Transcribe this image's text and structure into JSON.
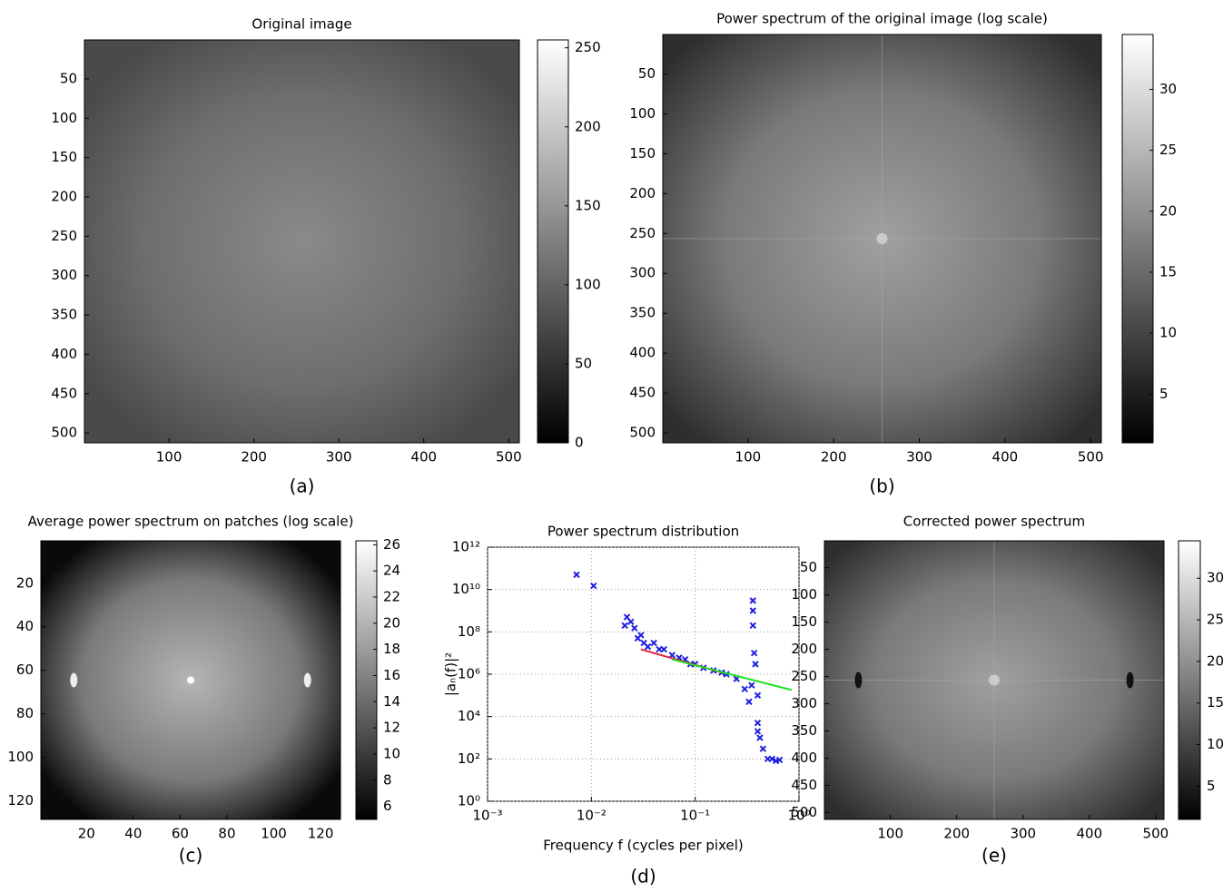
{
  "chart_data": [
    {
      "type": "image",
      "title": "Original image",
      "caption": "(a)",
      "xlim": [
        0.5,
        512.5
      ],
      "ylim": [
        512.5,
        0.5
      ],
      "xticks": [
        100,
        200,
        300,
        400,
        500
      ],
      "yticks": [
        50,
        100,
        150,
        200,
        250,
        300,
        350,
        400,
        450,
        500
      ],
      "clim": [
        0,
        255
      ],
      "cticks": [
        0,
        50,
        100,
        150,
        200,
        250
      ]
    },
    {
      "type": "image",
      "title": "Power spectrum of the original image (log scale)",
      "caption": "(b)",
      "xlim": [
        0.5,
        512.5
      ],
      "ylim": [
        512.5,
        0.5
      ],
      "xticks": [
        100,
        200,
        300,
        400,
        500
      ],
      "yticks": [
        50,
        100,
        150,
        200,
        250,
        300,
        350,
        400,
        450,
        500
      ],
      "clim": [
        1,
        34.5
      ],
      "cticks": [
        5,
        10,
        15,
        20,
        25,
        30
      ]
    },
    {
      "type": "image",
      "title": "Average power spectrum on patches (log scale)",
      "caption": "(c)",
      "xlim": [
        0.5,
        128.5
      ],
      "ylim": [
        128.5,
        0.5
      ],
      "xticks": [
        20,
        40,
        60,
        80,
        100,
        120
      ],
      "yticks": [
        20,
        40,
        60,
        80,
        100,
        120
      ],
      "clim": [
        5,
        26.3
      ],
      "cticks": [
        6,
        8,
        10,
        12,
        14,
        16,
        18,
        20,
        22,
        24,
        26
      ]
    },
    {
      "type": "scatter",
      "title": "Power spectrum distribution",
      "caption": "(d)",
      "x_label": "Frequency f (cycles per pixel)",
      "y_label": "|aₙ(f)|²",
      "xlog": true,
      "ylog": true,
      "grid": true,
      "xlim": [
        0.001,
        1
      ],
      "ylim": [
        1,
        1000000000000
      ],
      "xticks": [
        {
          "value": 0.001,
          "label": "10⁻³"
        },
        {
          "value": 0.01,
          "label": "10⁻²"
        },
        {
          "value": 0.1,
          "label": "10⁻¹"
        },
        {
          "value": 1,
          "label": "10⁰"
        }
      ],
      "yticks": [
        {
          "value": 1,
          "label": "10⁰"
        },
        {
          "value": 100,
          "label": "10²"
        },
        {
          "value": 10000,
          "label": "10⁴"
        },
        {
          "value": 1000000,
          "label": "10⁶"
        },
        {
          "value": 100000000,
          "label": "10⁸"
        },
        {
          "value": 10000000000,
          "label": "10¹⁰"
        },
        {
          "value": 1000000000000,
          "label": "10¹²"
        }
      ],
      "series": [
        {
          "mode": "markers",
          "color": "#1f1fe0",
          "x": [
            0.0072,
            0.0105,
            0.022,
            0.024,
            0.021,
            0.026,
            0.03,
            0.028,
            0.032,
            0.035,
            0.04,
            0.045,
            0.05,
            0.06,
            0.07,
            0.08,
            0.09,
            0.1,
            0.12,
            0.15,
            0.18,
            0.2,
            0.25,
            0.3,
            0.33,
            0.36,
            0.36,
            0.36,
            0.37,
            0.38,
            0.4,
            0.4,
            0.42,
            0.45,
            0.5,
            0.55,
            0.6,
            0.65,
            0.4,
            0.35
          ],
          "values": [
            50000000000,
            15000000000,
            500000000,
            300000000,
            200000000,
            150000000,
            70000000,
            50000000,
            30000000,
            20000000,
            30000000,
            15000000,
            15000000,
            8000000,
            6000000,
            5000000,
            3000000,
            3000000,
            2000000,
            1500000,
            1200000,
            1000000,
            600000,
            200000,
            50000,
            3000000000,
            1000000000,
            200000000,
            10000000,
            3000000,
            100000,
            5000,
            1000,
            300,
            100,
            100,
            80,
            90,
            2000,
            300000
          ]
        },
        {
          "mode": "line",
          "color": "#e0203a",
          "x": [
            0.03,
            0.18
          ],
          "values": [
            15000000,
            1200000
          ]
        },
        {
          "mode": "line",
          "color": "#20e020",
          "x": [
            0.06,
            0.85
          ],
          "values": [
            5000000,
            180000
          ]
        }
      ]
    },
    {
      "type": "image",
      "title": "Corrected power spectrum",
      "caption": "(e)",
      "xlim": [
        0.5,
        512.5
      ],
      "ylim": [
        512.5,
        0.5
      ],
      "xticks": [
        100,
        200,
        300,
        400,
        500
      ],
      "yticks": [
        50,
        100,
        150,
        200,
        250,
        300,
        350,
        400,
        450,
        500
      ],
      "clim": [
        1,
        34.5
      ],
      "cticks": [
        5,
        10,
        15,
        20,
        25,
        30
      ]
    }
  ]
}
